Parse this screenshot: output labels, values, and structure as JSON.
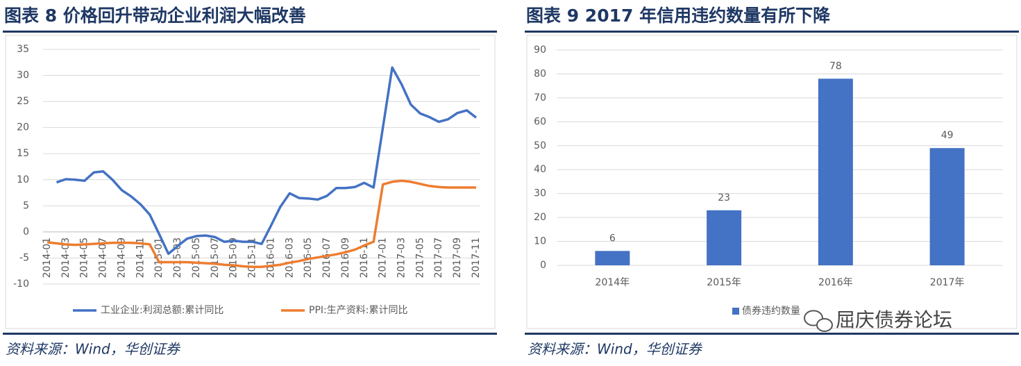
{
  "chart_data": [
    {
      "type": "line",
      "title": "图表 8   价格回升带动企业利润大幅改善",
      "categories": [
        "2014-01",
        null,
        "2014-03",
        null,
        "2014-05",
        null,
        "2014-07",
        null,
        "2014-09",
        null,
        "2014-11",
        null,
        "2015-01",
        null,
        "2015-03",
        null,
        "2015-05",
        null,
        "2015-07",
        null,
        "2015-09",
        null,
        "2015-11",
        null,
        "2016-01",
        null,
        "2016-03",
        null,
        "2016-05",
        null,
        "2016-07",
        null,
        "2016-09",
        null,
        "2016-11",
        null,
        "2017-01",
        null,
        "2017-03",
        null,
        "2017-05",
        null,
        "2017-07",
        null,
        "2017-09",
        null,
        "2017-11"
      ],
      "series": [
        {
          "name": "工业企业:利润总额:累计同比",
          "color": "#4472c4",
          "values": [
            null,
            9.5,
            10.1,
            10.0,
            9.8,
            11.4,
            11.6,
            10.0,
            8.0,
            6.8,
            5.3,
            3.3,
            -0.4,
            -4.2,
            -2.7,
            -1.3,
            -0.8,
            -0.7,
            -1.0,
            -1.9,
            -1.7,
            -1.9,
            -1.9,
            -2.3,
            1.2,
            4.8,
            7.4,
            6.5,
            6.4,
            6.2,
            6.9,
            8.4,
            8.4,
            8.6,
            9.4,
            8.5,
            20.0,
            31.5,
            28.3,
            24.4,
            22.7,
            22.0,
            21.1,
            21.6,
            22.8,
            23.3,
            21.9
          ]
        },
        {
          "name": "PPI:生产资料:累计同比",
          "color": "#ed7d31",
          "values": [
            -2.0,
            -2.2,
            -2.4,
            -2.5,
            -2.4,
            -2.3,
            -2.2,
            -2.1,
            -2.1,
            -2.1,
            -2.2,
            -2.4,
            -5.8,
            -5.8,
            -5.8,
            -5.8,
            -5.9,
            -6.0,
            -6.1,
            -6.3,
            -6.4,
            -6.6,
            -6.7,
            -6.7,
            -6.5,
            -6.3,
            -5.9,
            -5.6,
            -5.2,
            -4.9,
            -4.6,
            -4.3,
            -3.9,
            -3.4,
            -2.6,
            -1.9,
            9.1,
            9.6,
            9.8,
            9.6,
            9.2,
            8.8,
            8.6,
            8.5,
            8.5,
            8.5,
            8.5
          ]
        }
      ],
      "ylim": [
        -10,
        35
      ],
      "yticks": [
        -10,
        -5,
        0,
        5,
        10,
        15,
        20,
        25,
        30,
        35
      ],
      "grid": true,
      "legend": "bottom",
      "source": "资料来源：Wind，华创证券"
    },
    {
      "type": "bar",
      "title": "图表 9   2017 年信用违约数量有所下降",
      "categories": [
        "2014年",
        "2015年",
        "2016年",
        "2017年"
      ],
      "series": [
        {
          "name": "债券违约数量",
          "color": "#4472c4",
          "values": [
            6,
            23,
            78,
            49
          ]
        }
      ],
      "ylim": [
        0,
        90
      ],
      "yticks": [
        0,
        10,
        20,
        30,
        40,
        50,
        60,
        70,
        80,
        90
      ],
      "grid": true,
      "legend": "bottom",
      "source": "资料来源：Wind，华创证券"
    }
  ],
  "watermark": "屈庆债券论坛"
}
